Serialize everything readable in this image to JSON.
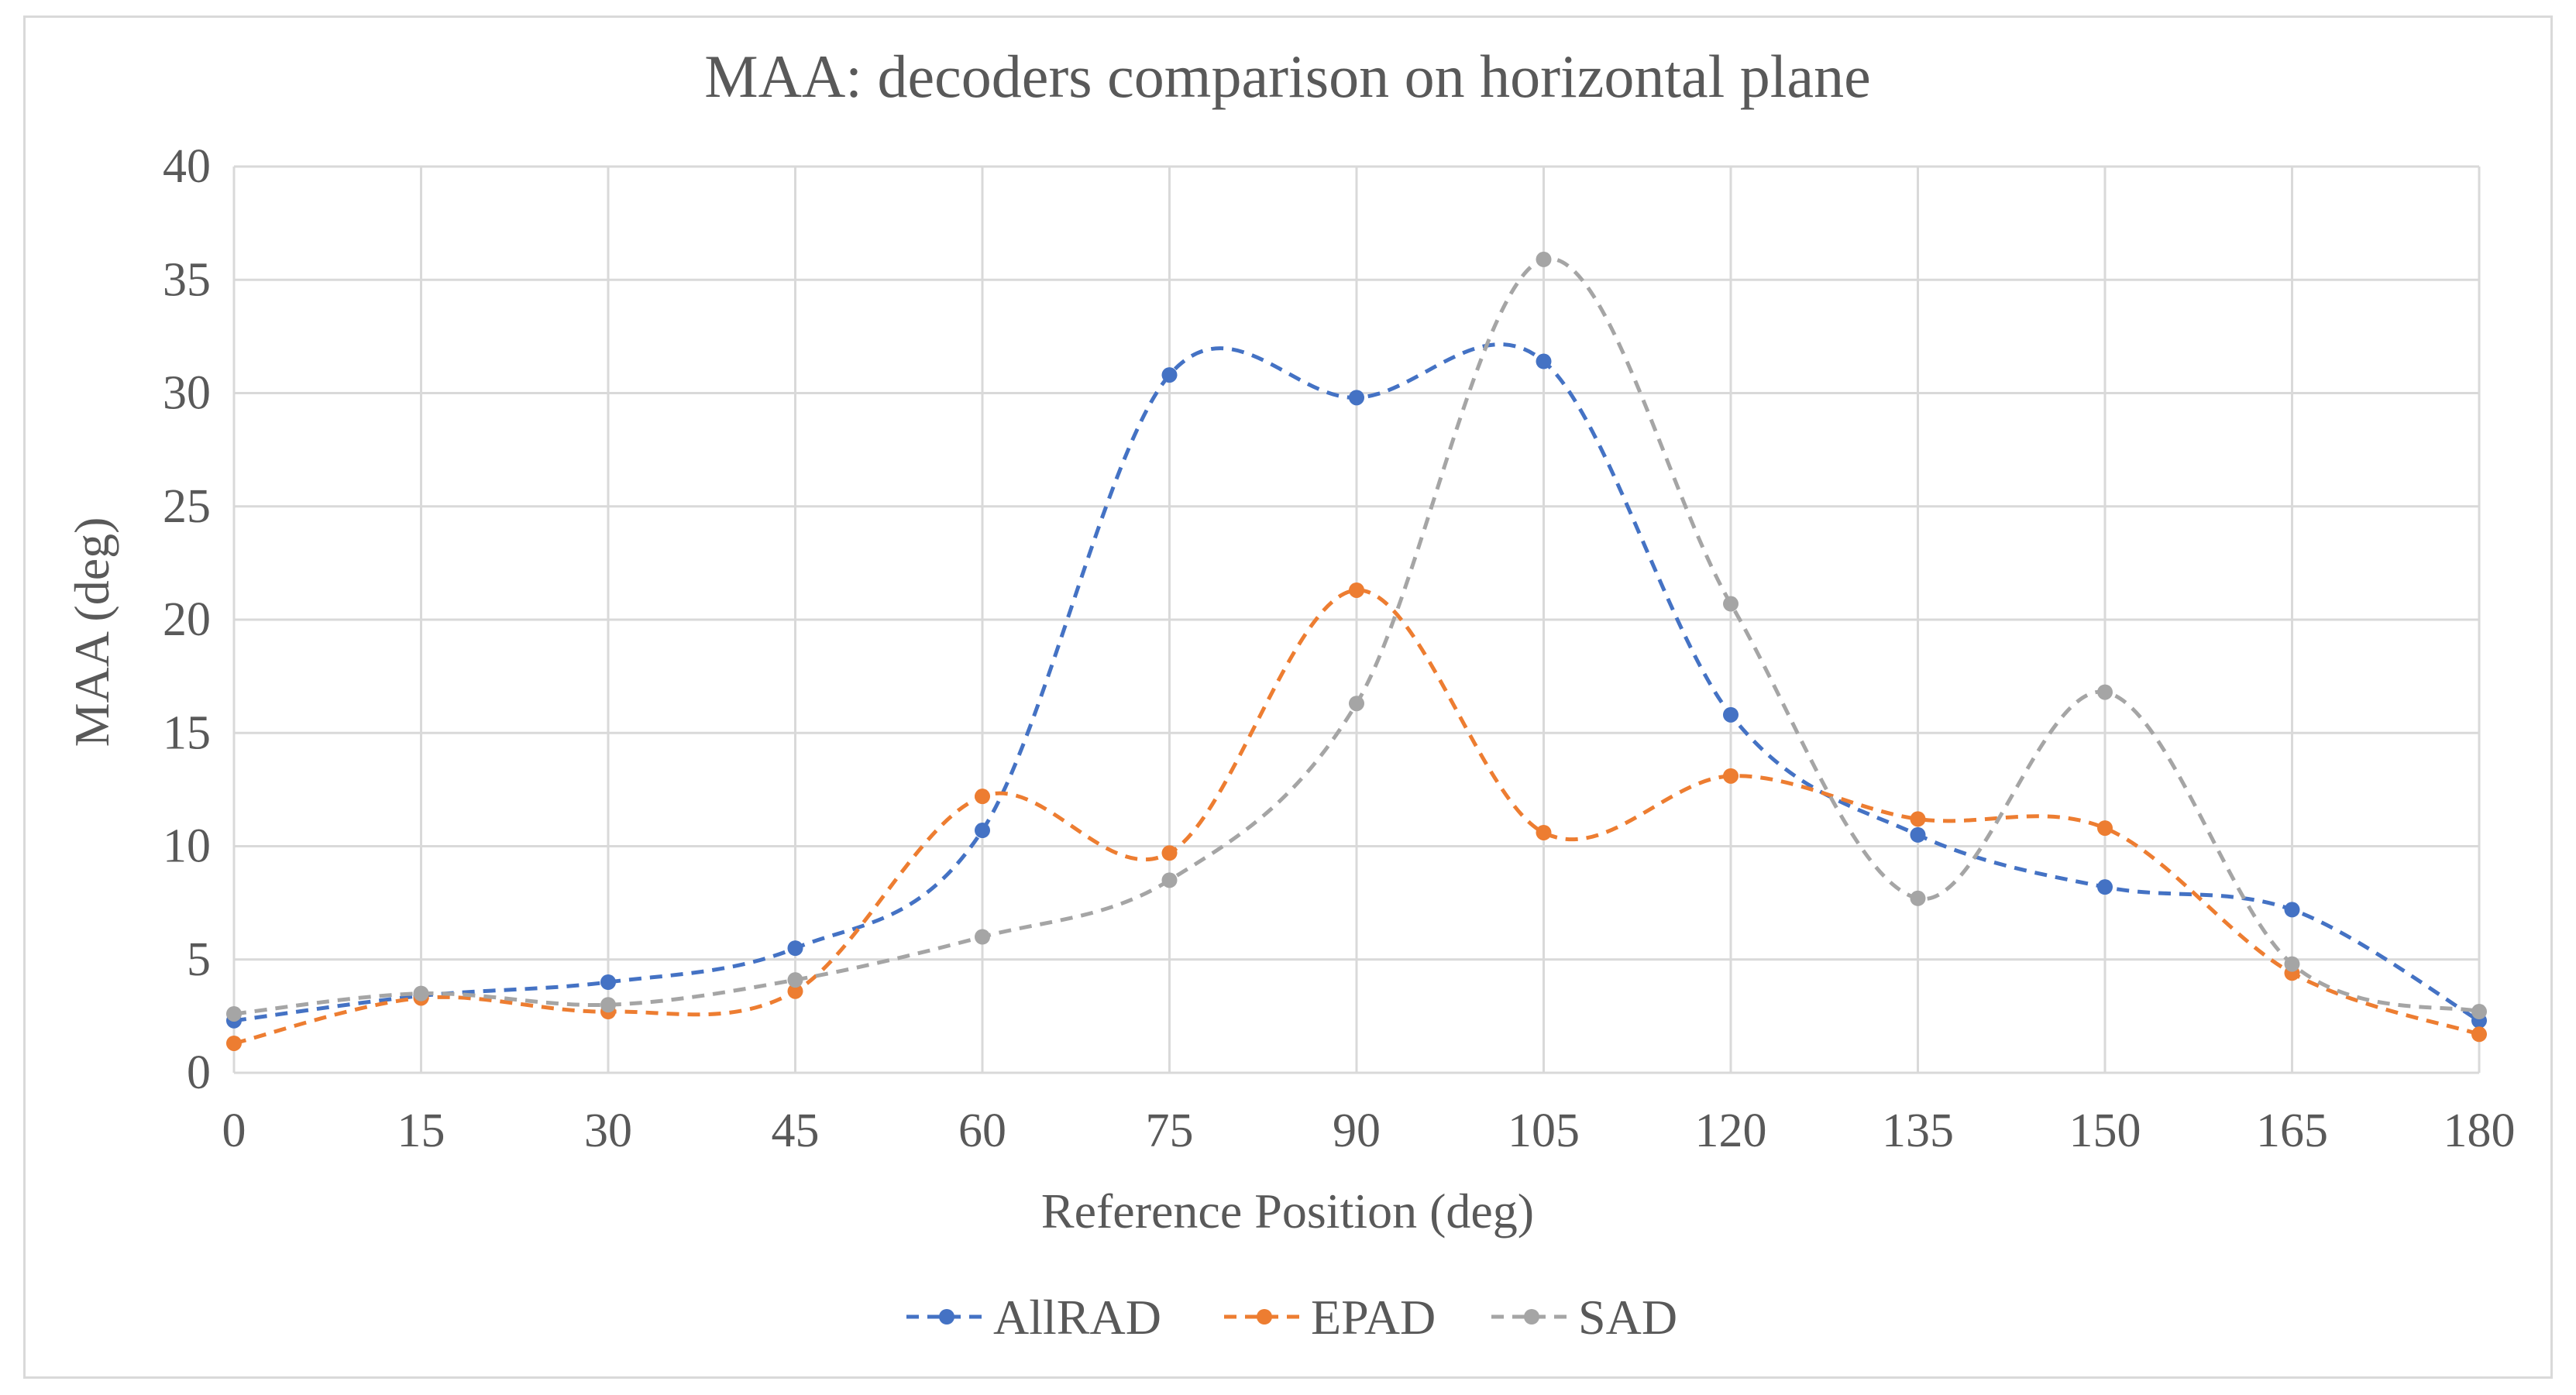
{
  "chart_data": {
    "type": "line",
    "title": "MAA: decoders comparison on horizontal plane",
    "xlabel": "Reference Position (deg)",
    "ylabel": "MAA (deg)",
    "x": [
      0,
      15,
      30,
      45,
      60,
      75,
      90,
      105,
      120,
      135,
      150,
      165,
      180
    ],
    "xlim": [
      0,
      180
    ],
    "ylim": [
      0,
      40
    ],
    "yticks": [
      0,
      5,
      10,
      15,
      20,
      25,
      30,
      35,
      40
    ],
    "grid": true,
    "legend_position": "bottom",
    "line_style": "dashed, smoothed, with markers",
    "series": [
      {
        "name": "AllRAD",
        "color": "#4472c4",
        "values": [
          2.3,
          3.4,
          4.0,
          5.5,
          10.7,
          30.8,
          29.8,
          31.4,
          15.8,
          10.5,
          8.2,
          7.2,
          2.3
        ]
      },
      {
        "name": "EPAD",
        "color": "#ed7d31",
        "values": [
          1.3,
          3.3,
          2.7,
          3.6,
          12.2,
          9.7,
          21.3,
          10.6,
          13.1,
          11.2,
          10.8,
          4.4,
          1.7
        ]
      },
      {
        "name": "SAD",
        "color": "#a5a5a5",
        "values": [
          2.6,
          3.5,
          3.0,
          4.1,
          6.0,
          8.5,
          16.3,
          35.9,
          20.7,
          7.7,
          16.8,
          4.8,
          2.7
        ]
      }
    ]
  }
}
